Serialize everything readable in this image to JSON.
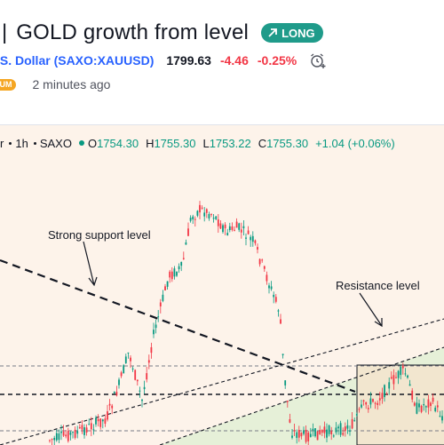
{
  "header": {
    "title_separator": "|",
    "title": "GOLD growth from level",
    "badge": {
      "label": "LONG",
      "icon": "arrow-up-right-icon",
      "color": "#1f9b8a"
    },
    "symbol": {
      "name": ".S. Dollar (SAXO:XAUUSD)",
      "price": "1799.63",
      "change": "-4.46",
      "change_pct": "-0.25%",
      "alarm_icon": "alarm-clock-add-icon"
    },
    "author": {
      "badge": "IUM",
      "badge_color": "#f5a623",
      "time_ago": "2 minutes ago"
    }
  },
  "chart": {
    "legend": {
      "symbol_prefix": "r",
      "interval": "1h",
      "exchange": "SAXO",
      "open_label": "O",
      "open": "1754.30",
      "high_label": "H",
      "high": "1755.30",
      "low_label": "L",
      "low": "1753.22",
      "close_label": "C",
      "close": "1755.30",
      "change": "+1.04 (+0.06%)"
    },
    "annotations": {
      "support": "Strong support level",
      "resistance": "Resistance level"
    },
    "colors": {
      "bullish": "#089981",
      "bearish": "#f23645",
      "background_zone": "#fdf3ea",
      "green_zone": "#e6f0d8"
    }
  }
}
